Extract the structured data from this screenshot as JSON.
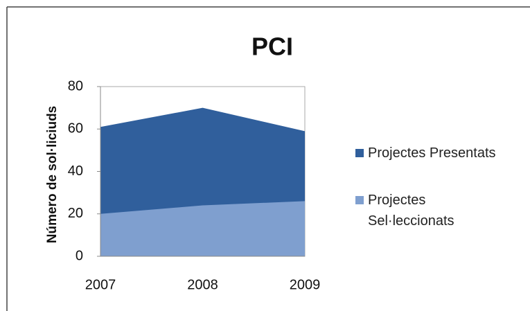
{
  "chart_data": {
    "type": "area",
    "title": "PCI",
    "ylabel": "Número de sol·liciuds",
    "categories": [
      "2007",
      "2008",
      "2009"
    ],
    "series": [
      {
        "name": "Projectes Presentats",
        "color": "#305f9c",
        "values": [
          61,
          70,
          59
        ]
      },
      {
        "name": "Projectes Sel·leccionats",
        "color": "#7f9fcf",
        "values": [
          20,
          24,
          26
        ]
      }
    ],
    "ylim": [
      0,
      80
    ],
    "yticks": [
      0,
      20,
      40,
      60,
      80
    ]
  }
}
